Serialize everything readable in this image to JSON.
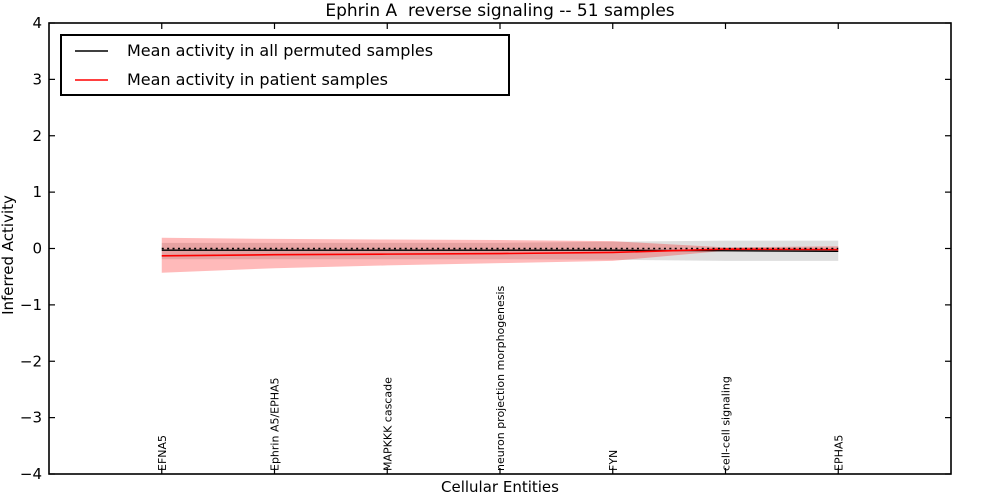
{
  "chart_data": {
    "type": "line",
    "title": "Ephrin A  reverse signaling -- 51 samples",
    "xlabel": "Cellular Entities",
    "ylabel": "Inferred Activity",
    "ylim": [
      -4,
      4
    ],
    "xlim": [
      -1,
      7
    ],
    "grid": false,
    "legend_position": "upper left",
    "categories": [
      "EFNA5",
      "Ephrin A5/EPHA5",
      "MAPKKK cascade",
      "neuron projection morphogenesis",
      "FYN",
      "cell-cell signaling",
      "EPHA5"
    ],
    "yticks": [
      {
        "label": "4",
        "value": 4
      },
      {
        "label": "3",
        "value": 3
      },
      {
        "label": "2",
        "value": 2
      },
      {
        "label": "1",
        "value": 1
      },
      {
        "label": "0",
        "value": 0
      },
      {
        "label": "−1",
        "value": -1
      },
      {
        "label": "−2",
        "value": -2
      },
      {
        "label": "−3",
        "value": -3
      },
      {
        "label": "−4",
        "value": -4
      }
    ],
    "series": [
      {
        "id": "permuted-mean-line",
        "name": "Mean activity in all permuted samples",
        "color": "#000000",
        "style": "solid",
        "width": 1.3,
        "values": [
          -0.03,
          -0.03,
          -0.03,
          -0.03,
          -0.03,
          -0.04,
          -0.05
        ]
      },
      {
        "id": "patient-mean-line",
        "name": "Mean activity in patient samples",
        "color": "#ff0000",
        "style": "solid",
        "width": 1.6,
        "values": [
          -0.13,
          -0.11,
          -0.1,
          -0.09,
          -0.07,
          -0.01,
          -0.02
        ]
      },
      {
        "id": "zero-reference-line",
        "name": "zero reference",
        "color": "#000000",
        "style": "dotted",
        "width": 1.6,
        "values": [
          0,
          0,
          0,
          0,
          0,
          0,
          0
        ]
      }
    ],
    "bands": [
      {
        "id": "permuted-samples-band",
        "color": "rgba(0,0,0,0.13)",
        "upper": [
          0.1,
          0.1,
          0.1,
          0.1,
          0.12,
          0.14,
          0.14
        ],
        "lower": [
          -0.19,
          -0.19,
          -0.19,
          -0.19,
          -0.2,
          -0.22,
          -0.22
        ]
      },
      {
        "id": "patient-samples-band",
        "color": "rgba(255,0,0,0.27)",
        "upper": [
          0.19,
          0.17,
          0.16,
          0.15,
          0.13,
          0.02,
          0.04
        ],
        "lower": [
          -0.43,
          -0.35,
          -0.3,
          -0.26,
          -0.22,
          -0.04,
          -0.06
        ]
      }
    ]
  }
}
